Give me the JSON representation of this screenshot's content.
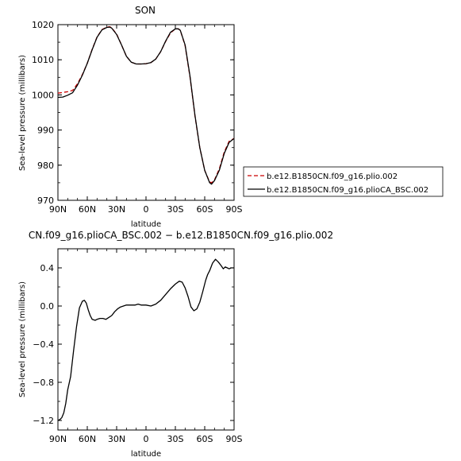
{
  "chart_data": [
    {
      "type": "line",
      "title": "SON",
      "xlabel": "latitude",
      "ylabel": "Sea-level pressure (millibars)",
      "x_ticks": [
        "90N",
        "60N",
        "30N",
        "0",
        "30S",
        "60S",
        "90S"
      ],
      "y_ticks": [
        "970",
        "980",
        "990",
        "1000",
        "1010",
        "1020"
      ],
      "xlim": [
        90,
        -90
      ],
      "ylim": [
        970,
        1020
      ],
      "legend_placement": "right",
      "series": [
        {
          "name": "b.e12.B1850CN.f09_g16.plio.002",
          "color": "#cc0000",
          "dash": "dashed",
          "x": [
            90,
            85,
            80,
            75,
            70,
            65,
            60,
            55,
            50,
            45,
            40,
            37,
            35,
            30,
            25,
            20,
            15,
            10,
            5,
            0,
            -5,
            -10,
            -15,
            -20,
            -25,
            -30,
            -33,
            -35,
            -40,
            -45,
            -50,
            -55,
            -60,
            -65,
            -67,
            -70,
            -75,
            -80,
            -85,
            -90
          ],
          "y": [
            1000.5,
            1000.7,
            1000.9,
            1001.3,
            1003.2,
            1005.8,
            1009.0,
            1013.0,
            1016.5,
            1018.6,
            1019.3,
            1019.4,
            1019.1,
            1017.3,
            1014.2,
            1011.0,
            1009.3,
            1008.8,
            1008.8,
            1008.9,
            1009.2,
            1010.2,
            1012.3,
            1015.2,
            1017.6,
            1018.8,
            1018.8,
            1018.4,
            1014.0,
            1005.0,
            994.0,
            985.0,
            978.5,
            975.2,
            975.0,
            975.8,
            979.0,
            983.8,
            986.8,
            987.6
          ]
        },
        {
          "name": "b.e12.B1850CN.f09_g16.plioCA_BSC.002",
          "color": "#000000",
          "dash": "solid",
          "x": [
            90,
            85,
            80,
            75,
            70,
            65,
            60,
            55,
            50,
            45,
            40,
            37,
            35,
            30,
            25,
            20,
            15,
            10,
            5,
            0,
            -5,
            -10,
            -15,
            -20,
            -25,
            -30,
            -33,
            -35,
            -40,
            -45,
            -50,
            -55,
            -60,
            -65,
            -67,
            -70,
            -75,
            -80,
            -85,
            -90
          ],
          "y": [
            999.3,
            999.4,
            999.9,
            1000.6,
            1002.8,
            1005.6,
            1009.0,
            1012.9,
            1016.4,
            1018.5,
            1019.2,
            1019.3,
            1019.0,
            1017.2,
            1014.2,
            1011.0,
            1009.3,
            1008.8,
            1008.8,
            1008.9,
            1009.2,
            1010.2,
            1012.3,
            1015.3,
            1017.8,
            1018.8,
            1018.8,
            1018.4,
            1014.2,
            1005.3,
            994.2,
            985.0,
            978.5,
            975.0,
            974.6,
            975.6,
            978.6,
            983.4,
            986.5,
            987.6
          ]
        }
      ]
    },
    {
      "type": "line",
      "title": "CN.f09_g16.plioCA_BSC.002 − b.e12.B1850CN.f09_g16.plio.002",
      "xlabel": "latitude",
      "ylabel": "Sea-level pressure (millibars)",
      "x_ticks": [
        "90N",
        "60N",
        "30N",
        "0",
        "30S",
        "60S",
        "90S"
      ],
      "y_ticks": [
        "−1.2",
        "−0.8",
        "−0.4",
        "0.0",
        "0.4"
      ],
      "y_tick_values": [
        -1.2,
        -0.8,
        -0.4,
        0.0,
        0.4
      ],
      "xlim": [
        90,
        -90
      ],
      "ylim": [
        -1.3,
        0.6
      ],
      "series": [
        {
          "name": "",
          "color": "#000000",
          "dash": "solid",
          "x": [
            90,
            88,
            86,
            84,
            82,
            80,
            77,
            74,
            71,
            68,
            65,
            63,
            61,
            59,
            57,
            55,
            52,
            50,
            47,
            44,
            41,
            38,
            35,
            32,
            29,
            26,
            23,
            20,
            17,
            14,
            11,
            8,
            5,
            2,
            0,
            -5,
            -10,
            -15,
            -20,
            -25,
            -30,
            -34,
            -37,
            -40,
            -43,
            -46,
            -49,
            -52,
            -55,
            -58,
            -61,
            -63,
            -65,
            -68,
            -71,
            -74,
            -77,
            -79,
            -81,
            -83,
            -85,
            -87,
            -89,
            -90
          ],
          "y": [
            -1.2,
            -1.19,
            -1.17,
            -1.12,
            -1.02,
            -0.88,
            -0.74,
            -0.47,
            -0.22,
            -0.02,
            0.05,
            0.06,
            0.03,
            -0.04,
            -0.1,
            -0.14,
            -0.15,
            -0.14,
            -0.13,
            -0.13,
            -0.14,
            -0.12,
            -0.1,
            -0.06,
            -0.03,
            -0.01,
            0.0,
            0.01,
            0.01,
            0.01,
            0.01,
            0.02,
            0.01,
            0.01,
            0.01,
            0.0,
            0.02,
            0.06,
            0.12,
            0.18,
            0.23,
            0.26,
            0.25,
            0.19,
            0.1,
            -0.01,
            -0.05,
            -0.03,
            0.04,
            0.15,
            0.27,
            0.33,
            0.37,
            0.45,
            0.49,
            0.46,
            0.42,
            0.39,
            0.41,
            0.4,
            0.39,
            0.4,
            0.4,
            0.4
          ]
        }
      ]
    }
  ]
}
